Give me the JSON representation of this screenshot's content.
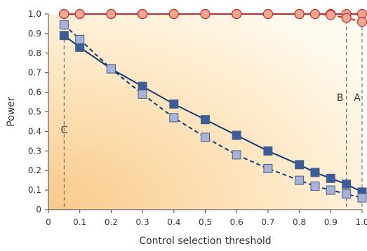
{
  "chart_data": {
    "type": "line",
    "title": "",
    "xlabel": "Control selection threshold",
    "ylabel": "Power",
    "xlim": [
      0,
      1.0
    ],
    "ylim": [
      0,
      1.0
    ],
    "x_ticks": [
      "0",
      "0.1",
      "0.2",
      "0.3",
      "0.4",
      "0.5",
      "0.6",
      "0.7",
      "0.8",
      "0.9",
      "1.0"
    ],
    "y_ticks": [
      "0",
      "0.1",
      "0.2",
      "0.3",
      "0.4",
      "0.5",
      "0.6",
      "0.7",
      "0.8",
      "0.9",
      "1.0"
    ],
    "grid": false,
    "background": "yellow-orange gradient",
    "series": [
      {
        "marker": "circle",
        "line": "solid",
        "color": "#cc2a2a",
        "fill": "#f4a892",
        "points": [
          [
            0.05,
            1.0
          ],
          [
            0.1,
            1.0
          ],
          [
            0.2,
            1.0
          ],
          [
            0.3,
            1.0
          ],
          [
            0.4,
            1.0
          ],
          [
            0.5,
            1.0
          ],
          [
            0.6,
            1.0
          ],
          [
            0.7,
            1.0
          ],
          [
            0.8,
            1.0
          ],
          [
            0.85,
            1.0
          ],
          [
            0.9,
            1.0
          ],
          [
            0.95,
            1.0
          ],
          [
            1.0,
            1.0
          ]
        ]
      },
      {
        "marker": "circle",
        "line": "dashed",
        "color": "#cc2a2a",
        "fill": "#f4a892",
        "points": [
          [
            0.05,
            1.0
          ],
          [
            0.1,
            1.0
          ],
          [
            0.2,
            1.0
          ],
          [
            0.3,
            1.0
          ],
          [
            0.4,
            1.0
          ],
          [
            0.5,
            1.0
          ],
          [
            0.6,
            1.0
          ],
          [
            0.7,
            1.0
          ],
          [
            0.8,
            1.0
          ],
          [
            0.85,
            1.0
          ],
          [
            0.9,
            0.995
          ],
          [
            0.95,
            0.98
          ],
          [
            1.0,
            0.96
          ]
        ]
      },
      {
        "marker": "square",
        "line": "solid",
        "color": "#143c73",
        "fill": "#3a5e99",
        "points": [
          [
            0.05,
            0.89
          ],
          [
            0.1,
            0.83
          ],
          [
            0.2,
            0.72
          ],
          [
            0.3,
            0.63
          ],
          [
            0.4,
            0.54
          ],
          [
            0.5,
            0.46
          ],
          [
            0.6,
            0.38
          ],
          [
            0.7,
            0.3
          ],
          [
            0.8,
            0.23
          ],
          [
            0.85,
            0.19
          ],
          [
            0.9,
            0.16
          ],
          [
            0.95,
            0.13
          ],
          [
            1.0,
            0.09
          ]
        ]
      },
      {
        "marker": "square",
        "line": "dashed",
        "color": "#143c73",
        "fill": "#a7b3d8",
        "points": [
          [
            0.05,
            0.945
          ],
          [
            0.1,
            0.87
          ],
          [
            0.2,
            0.72
          ],
          [
            0.3,
            0.59
          ],
          [
            0.4,
            0.47
          ],
          [
            0.5,
            0.37
          ],
          [
            0.6,
            0.28
          ],
          [
            0.7,
            0.21
          ],
          [
            0.8,
            0.15
          ],
          [
            0.85,
            0.12
          ],
          [
            0.9,
            0.1
          ],
          [
            0.95,
            0.08
          ],
          [
            1.0,
            0.06
          ]
        ]
      }
    ],
    "reference_lines": [
      {
        "label": "C",
        "x": 0.05
      },
      {
        "label": "B",
        "x": 0.95
      },
      {
        "label": "A",
        "x": 1.0
      }
    ]
  }
}
